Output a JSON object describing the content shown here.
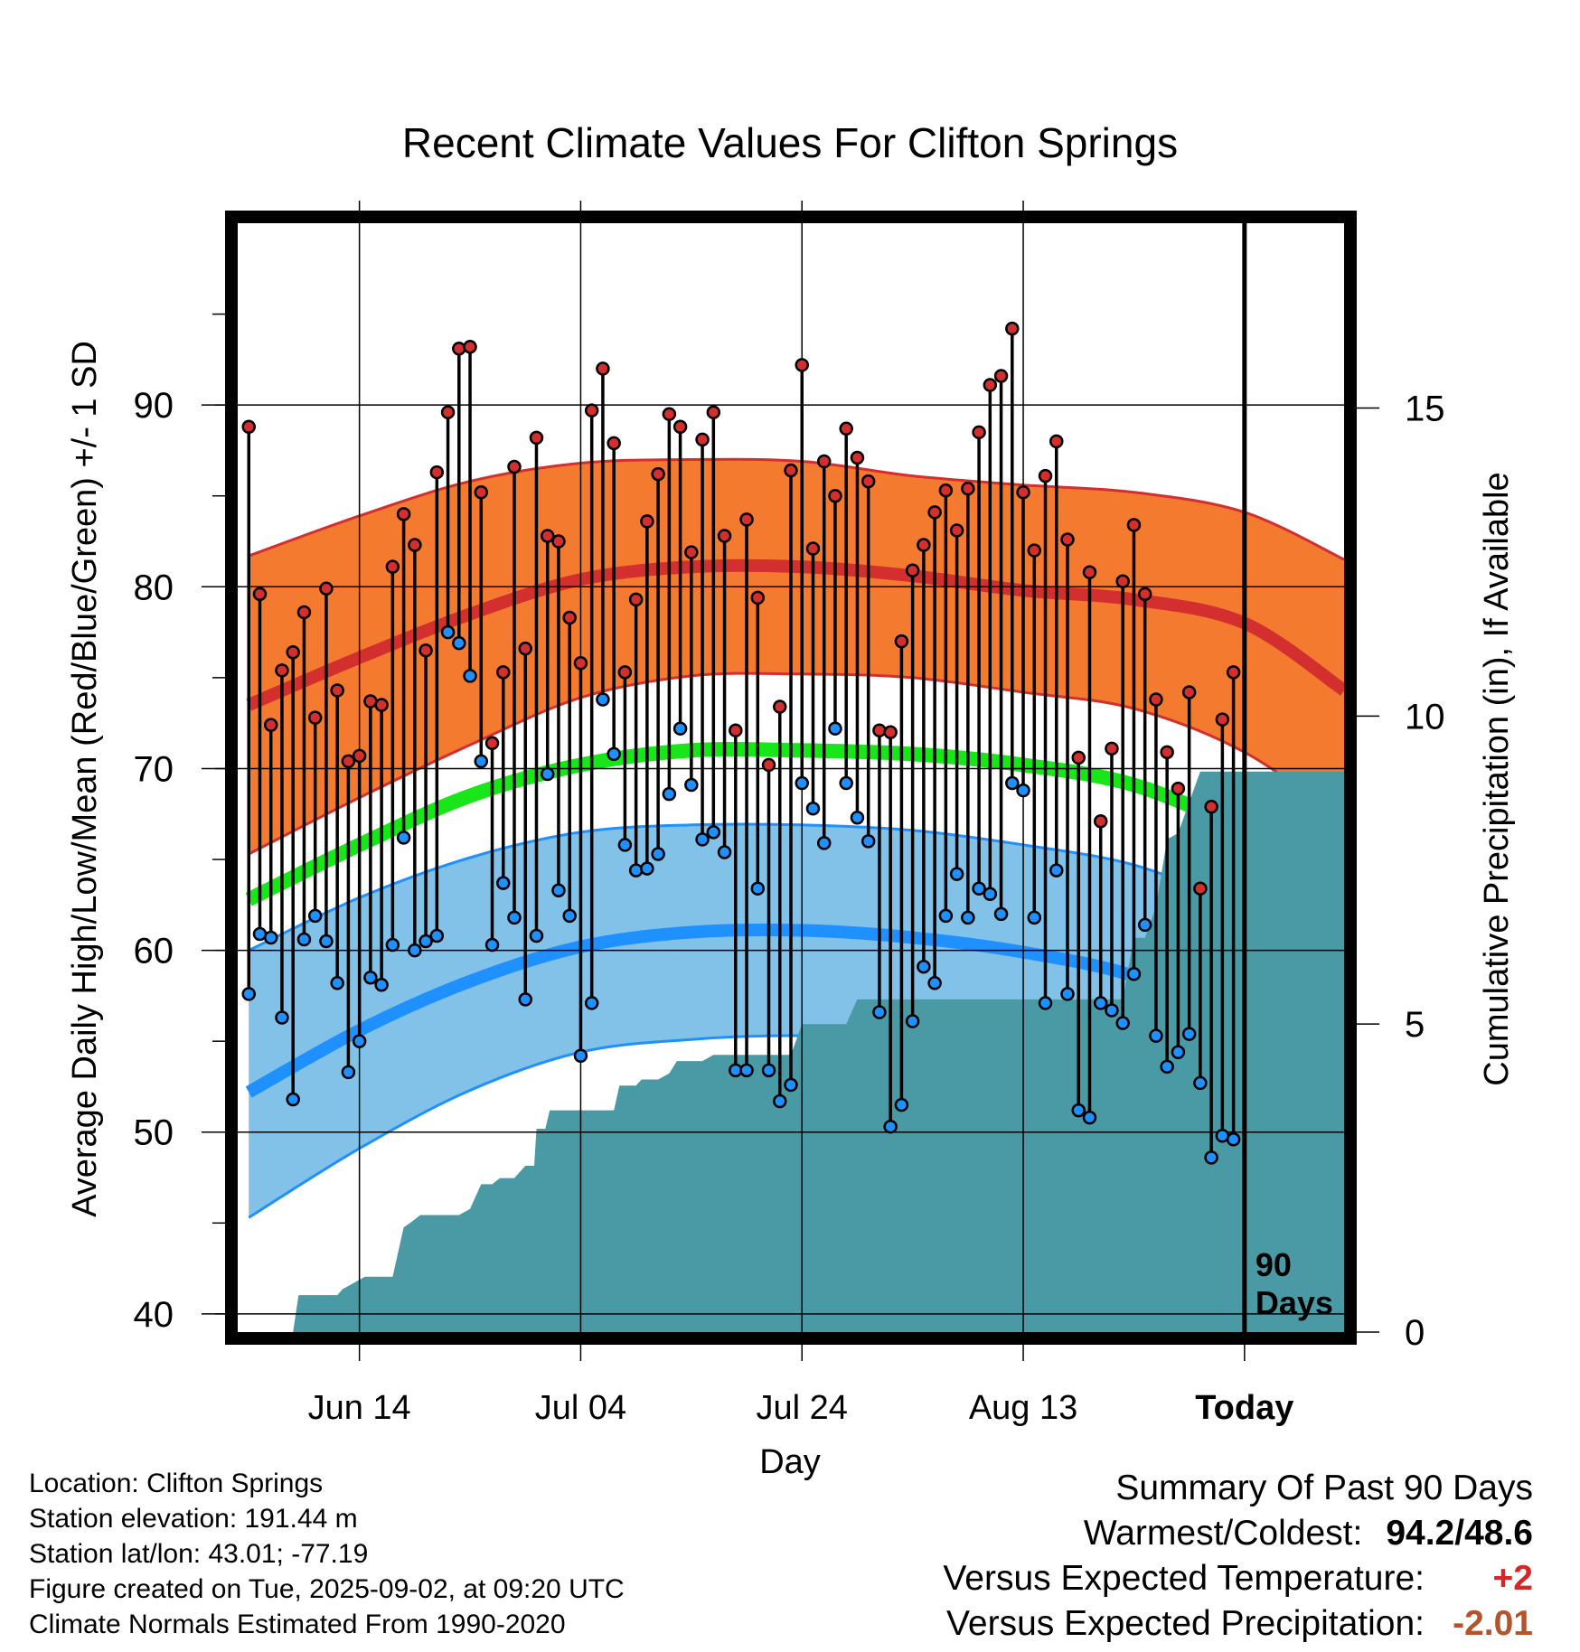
{
  "chart_data": {
    "type": "line",
    "title": "Recent Climate Values For Clifton Springs",
    "xlabel": "Day",
    "ylabel": "Average Daily High/Low/Mean (Red/Blue/Green) +/- 1 SD",
    "y2label": "Cumulative Precipitation (in), If Available",
    "x_ticks": [
      "Jun 14",
      "Jul 04",
      "Jul 24",
      "Aug 13",
      "Today"
    ],
    "x_tick_days": [
      10,
      30,
      50,
      70,
      90
    ],
    "x_range": [
      -1,
      99
    ],
    "ylim": [
      39,
      100
    ],
    "y_ticks": [
      40,
      50,
      60,
      70,
      80,
      90
    ],
    "y2lim": [
      0,
      18
    ],
    "y2_ticks": [
      0,
      5,
      10,
      15
    ],
    "grid": true,
    "today_marker": "90\nDays",
    "series": [
      {
        "name": "Average High",
        "color": "#d32f2f",
        "band_color": "#f47a30",
        "x": [
          0,
          10,
          20,
          30,
          40,
          50,
          60,
          70,
          80,
          90,
          99
        ],
        "mean": [
          73.5,
          76.1,
          78.5,
          80.4,
          81.1,
          81.1,
          80.6,
          79.8,
          79.3,
          78.0,
          74.3
        ],
        "upper": [
          81.7,
          83.9,
          85.8,
          86.8,
          87.0,
          86.9,
          86.1,
          85.6,
          85.2,
          84.1,
          81.5
        ],
        "lower": [
          65.3,
          68.4,
          71.3,
          73.9,
          75.1,
          75.2,
          75.0,
          74.2,
          73.3,
          70.9,
          67.1
        ]
      },
      {
        "name": "Average Mean",
        "color": "#19e619",
        "x": [
          0,
          10,
          20,
          30,
          40,
          50,
          60,
          70,
          80,
          90,
          99
        ],
        "mean": [
          62.8,
          65.8,
          68.5,
          70.2,
          71.0,
          71.0,
          70.8,
          70.2,
          69.1,
          66.6,
          63.8
        ]
      },
      {
        "name": "Average Low",
        "color": "#1e90ff",
        "band_color": "#82c1e8",
        "x": [
          0,
          10,
          20,
          30,
          40,
          50,
          60,
          70,
          80,
          90,
          99
        ],
        "mean": [
          52.2,
          55.6,
          58.3,
          60.2,
          61.0,
          61.1,
          60.7,
          59.9,
          58.6,
          56.1,
          53.2
        ],
        "upper": [
          60.0,
          62.9,
          65.1,
          66.5,
          66.9,
          66.9,
          66.6,
          65.8,
          64.7,
          62.4,
          60.6
        ],
        "lower": [
          45.3,
          49.1,
          52.3,
          54.4,
          55.1,
          55.3,
          55.0,
          53.8,
          52.2,
          49.1,
          45.9
        ]
      },
      {
        "name": "Daily High",
        "color": "#d32f2f",
        "x": [
          0,
          1,
          2,
          3,
          4,
          5,
          6,
          7,
          8,
          9,
          10,
          11,
          12,
          13,
          14,
          15,
          16,
          17,
          18,
          19,
          20,
          21,
          22,
          23,
          24,
          25,
          26,
          27,
          28,
          29,
          30,
          31,
          32,
          33,
          34,
          35,
          36,
          37,
          38,
          39,
          40,
          41,
          42,
          43,
          44,
          45,
          46,
          47,
          48,
          49,
          50,
          51,
          52,
          53,
          54,
          55,
          56,
          57,
          58,
          59,
          60,
          61,
          62,
          63,
          64,
          65,
          66,
          67,
          68,
          69,
          70,
          71,
          72,
          73,
          74,
          75,
          76,
          77,
          78,
          79,
          80,
          81,
          82,
          83,
          84,
          85,
          86,
          87,
          88,
          89
        ],
        "values": [
          88.8,
          79.6,
          72.4,
          75.4,
          76.4,
          78.6,
          72.8,
          79.9,
          74.3,
          70.4,
          70.7,
          73.7,
          73.5,
          81.1,
          84.0,
          82.3,
          76.5,
          86.3,
          89.6,
          93.1,
          93.2,
          85.2,
          71.4,
          75.3,
          86.6,
          76.6,
          88.2,
          82.8,
          82.5,
          78.3,
          75.8,
          89.7,
          92.0,
          87.9,
          75.3,
          79.3,
          83.6,
          86.2,
          89.5,
          88.8,
          81.9,
          88.1,
          89.6,
          82.8,
          72.1,
          83.7,
          79.4,
          70.2,
          73.4,
          86.4,
          92.2,
          82.1,
          86.9,
          85.0,
          88.7,
          87.1,
          85.8,
          72.1,
          72.0,
          77.0,
          80.9,
          82.3,
          84.1,
          85.3,
          83.1,
          85.4,
          88.5,
          91.1,
          91.6,
          94.2,
          85.2,
          82.0,
          86.1,
          88.0,
          82.6,
          70.6,
          80.8,
          67.1,
          71.1,
          80.3,
          83.4,
          79.6,
          73.8,
          70.9,
          68.9,
          74.2,
          63.4,
          67.9,
          72.7,
          75.3
        ]
      },
      {
        "name": "Daily Low",
        "color": "#1e90ff",
        "x": [
          0,
          1,
          2,
          3,
          4,
          5,
          6,
          7,
          8,
          9,
          10,
          11,
          12,
          13,
          14,
          15,
          16,
          17,
          18,
          19,
          20,
          21,
          22,
          23,
          24,
          25,
          26,
          27,
          28,
          29,
          30,
          31,
          32,
          33,
          34,
          35,
          36,
          37,
          38,
          39,
          40,
          41,
          42,
          43,
          44,
          45,
          46,
          47,
          48,
          49,
          50,
          51,
          52,
          53,
          54,
          55,
          56,
          57,
          58,
          59,
          60,
          61,
          62,
          63,
          64,
          65,
          66,
          67,
          68,
          69,
          70,
          71,
          72,
          73,
          74,
          75,
          76,
          77,
          78,
          79,
          80,
          81,
          82,
          83,
          84,
          85,
          86,
          87,
          88,
          89
        ],
        "values": [
          57.6,
          60.9,
          60.7,
          56.3,
          51.8,
          60.6,
          61.9,
          60.5,
          58.2,
          53.3,
          55.0,
          58.5,
          58.1,
          60.3,
          66.2,
          60.0,
          60.5,
          60.8,
          77.5,
          76.9,
          75.1,
          70.4,
          60.3,
          63.7,
          61.8,
          57.3,
          60.8,
          69.7,
          63.3,
          61.9,
          54.2,
          57.1,
          73.8,
          70.8,
          65.8,
          64.4,
          64.5,
          65.3,
          68.6,
          72.2,
          69.1,
          66.1,
          66.5,
          65.4,
          53.4,
          53.4,
          63.4,
          53.4,
          51.7,
          52.6,
          69.2,
          67.8,
          65.9,
          72.2,
          69.2,
          67.3,
          66.0,
          56.6,
          50.3,
          51.5,
          56.1,
          59.1,
          58.2,
          61.9,
          64.2,
          61.8,
          63.4,
          63.1,
          62.0,
          69.2,
          68.8,
          61.8,
          57.1,
          64.4,
          57.6,
          51.2,
          50.8,
          57.1,
          56.7,
          56.0,
          58.7,
          61.4,
          55.3,
          53.6,
          54.4,
          55.4,
          52.7,
          48.6,
          49.8,
          49.6
        ]
      },
      {
        "name": "Cumulative Precipitation",
        "axis": "right",
        "color": "#4a9aa5",
        "x": [
          0,
          4,
          4.5,
          8,
          8.5,
          10.5,
          11,
          13,
          14,
          14.8,
          15.5,
          17,
          19,
          20,
          21,
          21.5,
          22,
          22.7,
          23.2,
          24,
          25,
          25.8,
          26,
          26.8,
          27.2,
          28.2,
          29,
          30,
          32,
          33,
          33.5,
          35,
          35.5,
          37,
          38,
          38.7,
          39.2,
          41,
          42,
          43,
          44,
          49,
          50,
          51,
          52,
          53,
          54,
          55,
          56,
          57,
          58,
          59,
          60,
          61,
          62,
          63,
          64,
          65,
          66,
          67,
          68,
          69,
          70,
          71,
          72,
          73,
          74,
          75,
          76,
          77,
          78,
          79,
          80,
          81,
          82,
          83,
          84,
          85,
          86,
          87,
          88,
          89,
          90,
          99
        ],
        "values": [
          0,
          0,
          0.6,
          0.6,
          0.7,
          0.9,
          0.9,
          0.9,
          1.7,
          1.8,
          1.9,
          1.9,
          1.9,
          2.0,
          2.4,
          2.4,
          2.4,
          2.5,
          2.5,
          2.5,
          2.7,
          2.7,
          3.3,
          3.3,
          3.6,
          3.6,
          3.6,
          3.6,
          3.6,
          3.6,
          4.0,
          4.0,
          4.1,
          4.1,
          4.2,
          4.4,
          4.4,
          4.4,
          4.5,
          4.5,
          4.5,
          4.5,
          5.0,
          5.0,
          5.0,
          5.0,
          5.0,
          5.4,
          5.4,
          5.4,
          5.4,
          5.4,
          5.4,
          5.4,
          5.4,
          5.4,
          5.4,
          5.4,
          5.4,
          5.4,
          5.4,
          5.4,
          5.4,
          5.4,
          5.4,
          5.4,
          5.4,
          5.4,
          5.4,
          5.4,
          5.4,
          5.4,
          6.4,
          6.4,
          6.9,
          8.0,
          8.1,
          8.6,
          9.1,
          9.1,
          9.1,
          9.1,
          9.1,
          9.1
        ]
      }
    ]
  },
  "footer": {
    "location": "Location: Clifton Springs",
    "elevation": "Station elevation: 191.44 m",
    "latlon": "Station lat/lon: 43.01; -77.19",
    "created": "Figure created on Tue, 2025-09-02, at 09:20 UTC",
    "normals": "Climate Normals Estimated From 1990-2020"
  },
  "summary": {
    "title": "Summary Of Past 90 Days",
    "warm_cold_label": "Warmest/Coldest:",
    "warm_cold_value": "94.2/48.6",
    "temp_label": "Versus Expected Temperature:",
    "temp_value": "+2",
    "precip_label": "Versus Expected Precipitation:",
    "precip_value": "-2.01",
    "positive_color": "#d62728",
    "negative_color": "#b5532a"
  }
}
